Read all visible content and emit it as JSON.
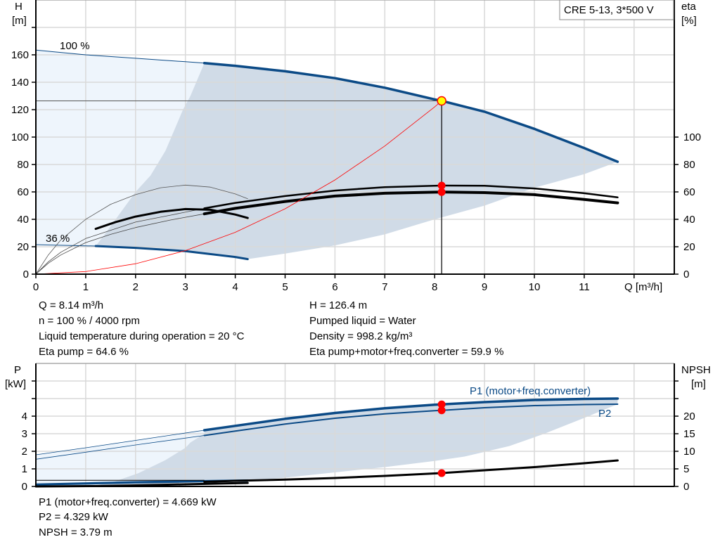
{
  "colors": {
    "curve_blue": "#0b4a86",
    "light_fill": "#eef5fc",
    "dark_fill": "#d0dbe7",
    "grid": "#d9d9d9",
    "operating_point": "#ffff00",
    "marker": "#ff0000",
    "system_curve": "#ff0000"
  },
  "chart_data": [
    {
      "type": "line",
      "legend_box": "CRE 5-13, 3*500 V",
      "xlabel": "Q [m³/h]",
      "ylabel_left": [
        "H",
        "[m]"
      ],
      "ylabel_right": [
        "eta",
        "[%]"
      ],
      "xlim": [
        0,
        12.8
      ],
      "ylim_left": [
        0,
        200
      ],
      "ylim_right": [
        0,
        200
      ],
      "x_ticks": [
        0,
        1,
        2,
        3,
        4,
        5,
        6,
        7,
        8,
        9,
        10,
        11
      ],
      "y_ticks_left": [
        0,
        20,
        40,
        60,
        80,
        100,
        120,
        140,
        160
      ],
      "y_ticks_right": [
        0,
        20,
        40,
        60,
        80,
        100
      ],
      "grid": true,
      "speed_labels": {
        "max": "100 %",
        "min": "36 %"
      },
      "series": {
        "head_100": [
          [
            0,
            163.5
          ],
          [
            1,
            160
          ],
          [
            2,
            157.5
          ],
          [
            3,
            155
          ],
          [
            3.38,
            154
          ],
          [
            4,
            152
          ],
          [
            5,
            148
          ],
          [
            6,
            143
          ],
          [
            7,
            136
          ],
          [
            8,
            127.5
          ],
          [
            8.14,
            126.4
          ],
          [
            9,
            118.5
          ],
          [
            10,
            106
          ],
          [
            11,
            92
          ],
          [
            11.67,
            82
          ]
        ],
        "head_36": [
          [
            0,
            21.5
          ],
          [
            1.2,
            20.5
          ],
          [
            2,
            19.2
          ],
          [
            3,
            16.8
          ],
          [
            4,
            12.5
          ],
          [
            4.25,
            11
          ]
        ],
        "eta_pump": [
          [
            3.38,
            48
          ],
          [
            4,
            52
          ],
          [
            5,
            57
          ],
          [
            6,
            61
          ],
          [
            7,
            63.5
          ],
          [
            8,
            64.5
          ],
          [
            8.14,
            64.6
          ],
          [
            9,
            64.5
          ],
          [
            10,
            62.5
          ],
          [
            11,
            59
          ],
          [
            11.67,
            56
          ]
        ],
        "eta_total": [
          [
            3.38,
            44
          ],
          [
            4,
            48
          ],
          [
            5,
            53
          ],
          [
            6,
            57
          ],
          [
            7,
            59
          ],
          [
            8,
            59.8
          ],
          [
            8.14,
            59.9
          ],
          [
            9,
            59.5
          ],
          [
            10,
            58
          ],
          [
            11,
            54.5
          ],
          [
            11.67,
            52
          ]
        ],
        "eta_total_36": [
          [
            1.2,
            33
          ],
          [
            1.6,
            38
          ],
          [
            2,
            42
          ],
          [
            2.5,
            45.5
          ],
          [
            3,
            47.5
          ],
          [
            3.5,
            47
          ],
          [
            4,
            43.5
          ],
          [
            4.25,
            41
          ]
        ],
        "eta_pump_36": [
          [
            0,
            0
          ],
          [
            0.25,
            14
          ],
          [
            0.5,
            25
          ],
          [
            1,
            40
          ],
          [
            1.5,
            51
          ],
          [
            2,
            58
          ],
          [
            2.5,
            63
          ],
          [
            3,
            65
          ],
          [
            3.5,
            63.5
          ],
          [
            4,
            58.5
          ],
          [
            4.25,
            55
          ]
        ],
        "eta_low_a": [
          [
            0,
            0
          ],
          [
            0.25,
            9
          ],
          [
            0.5,
            16
          ],
          [
            1,
            26
          ],
          [
            1.5,
            32
          ],
          [
            2,
            38
          ],
          [
            2.7,
            43
          ],
          [
            3.38,
            48
          ]
        ],
        "eta_low_b": [
          [
            0,
            0
          ],
          [
            0.25,
            8
          ],
          [
            0.5,
            14
          ],
          [
            1,
            23
          ],
          [
            1.5,
            29
          ],
          [
            2,
            34
          ],
          [
            2.7,
            39.5
          ],
          [
            3.38,
            44
          ]
        ],
        "system_curve": [
          [
            0,
            0
          ],
          [
            1,
            1.9
          ],
          [
            2,
            7.6
          ],
          [
            3,
            17.2
          ],
          [
            4,
            30.5
          ],
          [
            5,
            47.7
          ],
          [
            6,
            68.7
          ],
          [
            7,
            93.5
          ],
          [
            8,
            122
          ],
          [
            8.14,
            126.4
          ]
        ],
        "range_lower": [
          [
            4.25,
            11
          ],
          [
            5,
            15
          ],
          [
            6,
            21
          ],
          [
            6.5,
            25
          ],
          [
            7,
            29
          ],
          [
            8,
            40
          ],
          [
            9,
            50
          ],
          [
            10,
            63
          ],
          [
            11,
            73
          ],
          [
            11.67,
            82
          ]
        ],
        "range_left": [
          [
            3.38,
            154
          ],
          [
            3.1,
            130
          ],
          [
            2.95,
            120
          ],
          [
            2.6,
            90
          ],
          [
            2.3,
            72
          ],
          [
            2,
            60
          ],
          [
            1.7,
            45
          ],
          [
            1.4,
            30
          ],
          [
            1.2,
            20.5
          ]
        ]
      },
      "operating_point": {
        "Q": 8.14,
        "H": 126.4,
        "eta_pump": 64.6,
        "eta_total": 59.9
      }
    },
    {
      "type": "line",
      "ylabel_left": [
        "P",
        "[kW]"
      ],
      "ylabel_right": [
        "NPSH",
        "[m]"
      ],
      "xlim": [
        0,
        12.8
      ],
      "ylim_left": [
        0,
        7
      ],
      "ylim_right": [
        0,
        35
      ],
      "y_ticks_left": [
        0,
        1,
        2,
        3,
        4
      ],
      "y_ticks_right": [
        0,
        5,
        10,
        15,
        20
      ],
      "grid": true,
      "series_labels": {
        "p1": "P1 (motor+freq.converter)",
        "p2": "P2"
      },
      "series": {
        "p1": [
          [
            0,
            1.8
          ],
          [
            1,
            2.2
          ],
          [
            2,
            2.62
          ],
          [
            3.38,
            3.2
          ],
          [
            4,
            3.45
          ],
          [
            5,
            3.85
          ],
          [
            6,
            4.18
          ],
          [
            7,
            4.45
          ],
          [
            8,
            4.65
          ],
          [
            8.14,
            4.669
          ],
          [
            9,
            4.8
          ],
          [
            10,
            4.92
          ],
          [
            11,
            4.98
          ],
          [
            11.67,
            5.0
          ]
        ],
        "p2": [
          [
            0,
            1.55
          ],
          [
            1,
            1.95
          ],
          [
            2,
            2.36
          ],
          [
            3.38,
            2.9
          ],
          [
            4,
            3.15
          ],
          [
            5,
            3.55
          ],
          [
            6,
            3.88
          ],
          [
            7,
            4.13
          ],
          [
            8,
            4.31
          ],
          [
            8.14,
            4.329
          ],
          [
            9,
            4.48
          ],
          [
            10,
            4.6
          ],
          [
            11,
            4.66
          ],
          [
            11.67,
            4.68
          ]
        ],
        "p1_36": [
          [
            0,
            0.12
          ],
          [
            1.2,
            0.2
          ],
          [
            2,
            0.25
          ],
          [
            3,
            0.3
          ],
          [
            4.25,
            0.35
          ]
        ],
        "p2_36": [
          [
            0,
            0.08
          ],
          [
            1.2,
            0.15
          ],
          [
            2,
            0.2
          ],
          [
            3,
            0.25
          ],
          [
            4.25,
            0.3
          ]
        ],
        "npsh": [
          [
            3.38,
            1.3
          ],
          [
            4,
            1.6
          ],
          [
            5,
            1.95
          ],
          [
            6,
            2.4
          ],
          [
            7,
            3
          ],
          [
            8,
            3.7
          ],
          [
            8.14,
            3.79
          ],
          [
            9,
            4.6
          ],
          [
            10,
            5.5
          ],
          [
            11,
            6.6
          ],
          [
            11.67,
            7.4
          ]
        ],
        "npsh_36": [
          [
            0,
            0
          ],
          [
            1.2,
            0.1
          ],
          [
            2,
            0.3
          ],
          [
            3,
            0.6
          ],
          [
            4.25,
            1.0
          ]
        ],
        "range_lower": [
          [
            4.25,
            0.3
          ],
          [
            5,
            0.5
          ],
          [
            6,
            0.8
          ],
          [
            7,
            1.1
          ],
          [
            8,
            1.45
          ],
          [
            8.6,
            1.7
          ],
          [
            9.5,
            2.3
          ],
          [
            10.2,
            3
          ],
          [
            11,
            3.9
          ],
          [
            11.67,
            4.68
          ]
        ],
        "range_left": [
          [
            3.38,
            3.0
          ],
          [
            3.1,
            2.5
          ],
          [
            3,
            2.2
          ],
          [
            2.6,
            1.5
          ],
          [
            2.06,
            0.76
          ],
          [
            1.6,
            0.3
          ],
          [
            1.2,
            0.05
          ]
        ]
      },
      "operating_point": {
        "P1": 4.669,
        "P2": 4.329,
        "NPSH": 3.79
      }
    }
  ],
  "info_top": {
    "left": [
      "Q = 8.14 m³/h",
      "n = 100 % / 4000 rpm",
      "Liquid temperature during operation = 20 °C",
      "Eta pump = 64.6 %"
    ],
    "right": [
      "H = 126.4 m",
      "Pumped liquid = Water",
      "Density = 998.2 kg/m³",
      "Eta pump+motor+freq.converter = 59.9 %"
    ]
  },
  "info_bottom": [
    "P1 (motor+freq.converter) = 4.669 kW",
    "P2 = 4.329 kW",
    "NPSH = 3.79 m"
  ]
}
